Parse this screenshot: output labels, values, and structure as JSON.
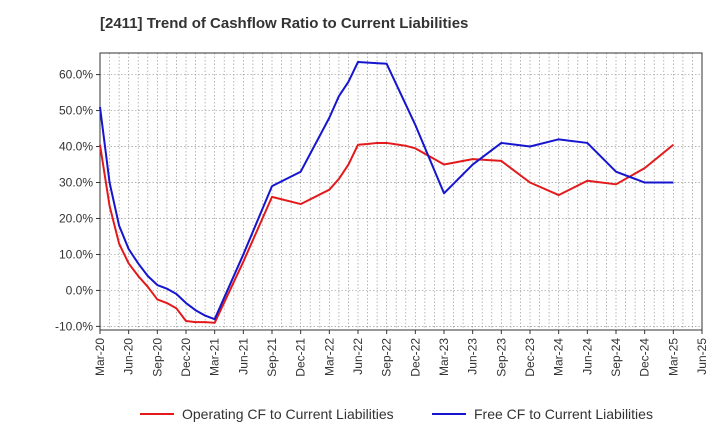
{
  "chart_data": {
    "type": "line",
    "title": "[2411]  Trend of Cashflow Ratio to Current Liabilities",
    "xlabel": "",
    "ylabel": "",
    "x_tick_labels": [
      "Mar-20",
      "Jun-20",
      "Sep-20",
      "Dec-20",
      "Mar-21",
      "Jun-21",
      "Sep-21",
      "Dec-21",
      "Mar-22",
      "Jun-22",
      "Sep-22",
      "Dec-22",
      "Mar-23",
      "Jun-23",
      "Sep-23",
      "Dec-23",
      "Mar-24",
      "Jun-24",
      "Sep-24",
      "Dec-24",
      "Mar-25",
      "Jun-25"
    ],
    "y_ticks": [
      -10,
      0,
      10,
      20,
      30,
      40,
      50,
      60
    ],
    "y_tick_labels": [
      "-10.0%",
      "0.0%",
      "10.0%",
      "20.0%",
      "30.0%",
      "40.0%",
      "50.0%",
      "60.0%"
    ],
    "ylim": [
      -11,
      66
    ],
    "xlim": [
      "Mar-20",
      "Jun-25"
    ],
    "grid": true,
    "legend_position": "bottom",
    "series": [
      {
        "name": "Operating CF to Current Liabilities",
        "color": "#e31a1c",
        "x": [
          "Mar-20",
          "Apr-20",
          "May-20",
          "Jun-20",
          "Jul-20",
          "Aug-20",
          "Sep-20",
          "Oct-20",
          "Nov-20",
          "Dec-20",
          "Jan-21",
          "Feb-21",
          "Mar-21",
          "Jun-21",
          "Sep-21",
          "Dec-21",
          "Mar-22",
          "Apr-22",
          "May-22",
          "Jun-22",
          "Jul-22",
          "Aug-22",
          "Sep-22",
          "Oct-22",
          "Nov-22",
          "Dec-22",
          "Jan-23",
          "Feb-23",
          "Mar-23",
          "Jun-23",
          "Sep-23",
          "Dec-23",
          "Mar-24",
          "Jun-24",
          "Sep-24",
          "Dec-24",
          "Mar-25"
        ],
        "values": [
          40.5,
          23.5,
          13.0,
          7.5,
          4.0,
          1.0,
          -2.5,
          -3.5,
          -5.0,
          -8.5,
          -8.8,
          -8.8,
          -9.0,
          8.0,
          26.0,
          24.0,
          28.0,
          31.0,
          35.0,
          40.5,
          40.7,
          41.0,
          41.0,
          40.6,
          40.2,
          39.5,
          38.0,
          36.5,
          35.0,
          36.5,
          36.0,
          30.0,
          26.5,
          30.5,
          29.5,
          34.0,
          40.5
        ]
      },
      {
        "name": "Free CF to Current Liabilities",
        "color": "#1515d0",
        "x": [
          "Mar-20",
          "Apr-20",
          "May-20",
          "Jun-20",
          "Jul-20",
          "Aug-20",
          "Sep-20",
          "Oct-20",
          "Nov-20",
          "Dec-20",
          "Jan-21",
          "Feb-21",
          "Mar-21",
          "Jun-21",
          "Sep-21",
          "Dec-21",
          "Jan-22",
          "Feb-22",
          "Mar-22",
          "Apr-22",
          "May-22",
          "Jun-22",
          "Sep-22",
          "Dec-22",
          "Mar-23",
          "Jun-23",
          "Sep-23",
          "Dec-23",
          "Mar-24",
          "Jun-24",
          "Sep-24",
          "Dec-24",
          "Mar-25"
        ],
        "values": [
          51.0,
          30.0,
          18.0,
          11.5,
          7.5,
          4.0,
          1.5,
          0.5,
          -1.0,
          -3.5,
          -5.5,
          -7.0,
          -8.0,
          10.0,
          29.0,
          33.0,
          38.0,
          43.0,
          48.0,
          54.0,
          58.0,
          63.5,
          63.0,
          46.0,
          27.0,
          35.0,
          41.0,
          40.0,
          42.0,
          41.0,
          33.0,
          30.0,
          30.0
        ]
      }
    ]
  }
}
